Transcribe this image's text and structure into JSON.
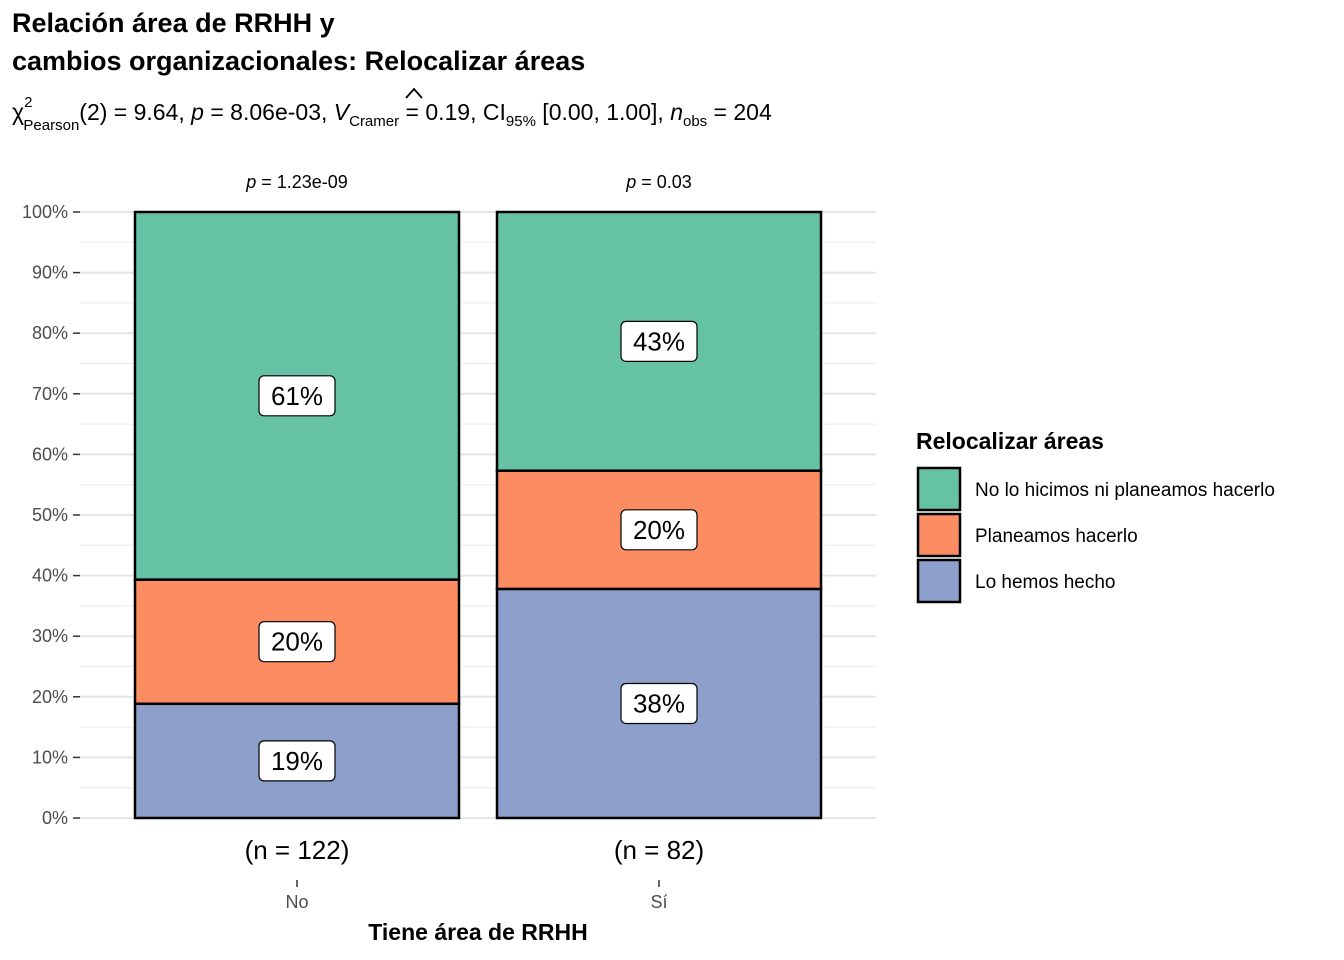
{
  "chart_data": {
    "type": "bar",
    "stacked": true,
    "title_line1": "Relación área de RRHH y",
    "title_line2": "cambios organizacionales: Relocalizar áreas",
    "subtitle": {
      "chi": "χ",
      "chi_sup": "2",
      "chi_sub": "Pearson",
      "part1": "(2) = 9.64, ",
      "p_sym": "p",
      "part2": " = 8.06e-03, ",
      "v_sym": "V",
      "v_hat": "^",
      "v_sub": "Cramer",
      "part3": " = 0.19, CI",
      "ci_sub": "95%",
      "part4": " [0.00, 1.00], ",
      "n_sym": "n",
      "n_sub": "obs",
      "part5": " = 204"
    },
    "xlabel": "Tiene área de RRHH",
    "ylabel": "",
    "ylim": [
      0,
      100
    ],
    "yticks": [
      "0%",
      "10%",
      "20%",
      "30%",
      "40%",
      "50%",
      "60%",
      "70%",
      "80%",
      "90%",
      "100%"
    ],
    "categories": [
      "No",
      "Sí"
    ],
    "n_labels": [
      "(n = 122)",
      "(n = 82)"
    ],
    "p_labels": [
      {
        "sym": "p",
        "text": " = 1.23e-09"
      },
      {
        "sym": "p",
        "text": " = 0.03"
      }
    ],
    "series": [
      {
        "name": "Lo hemos hecho",
        "color": "#8da0cb",
        "values": [
          18.85,
          37.8
        ],
        "labels": [
          "19%",
          "38%"
        ]
      },
      {
        "name": "Planeamos hacerlo",
        "color": "#fc8d62",
        "values": [
          20.49,
          19.51
        ],
        "labels": [
          "20%",
          "20%"
        ]
      },
      {
        "name": "No lo hicimos ni planeamos hacerlo",
        "color": "#66c2a5",
        "values": [
          60.66,
          42.69
        ],
        "labels": [
          "61%",
          "43%"
        ]
      }
    ],
    "legend": {
      "title": "Relocalizar áreas",
      "position": "right",
      "order": [
        "No lo hicimos ni planeamos hacerlo",
        "Planeamos hacerlo",
        "Lo hemos hecho"
      ]
    },
    "grid": true
  }
}
